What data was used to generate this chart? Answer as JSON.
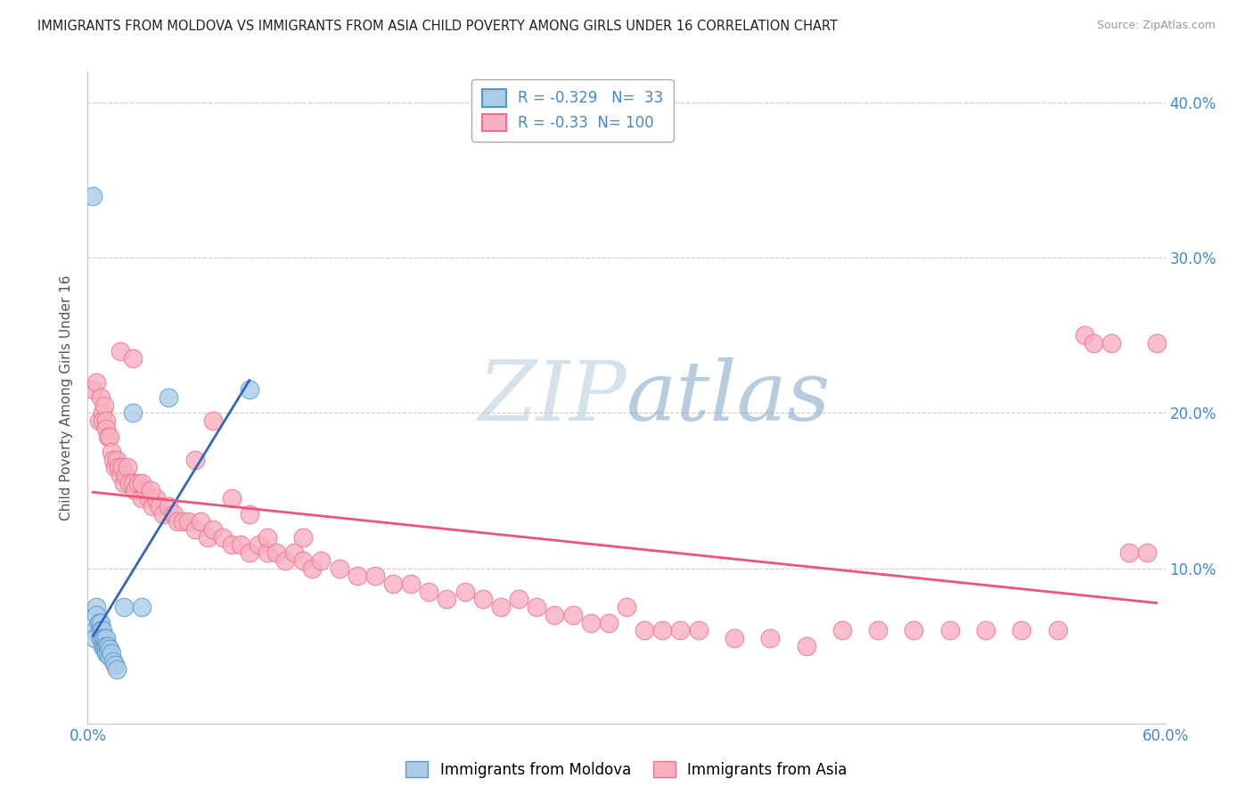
{
  "title": "IMMIGRANTS FROM MOLDOVA VS IMMIGRANTS FROM ASIA CHILD POVERTY AMONG GIRLS UNDER 16 CORRELATION CHART",
  "source": "Source: ZipAtlas.com",
  "ylabel": "Child Poverty Among Girls Under 16",
  "xlim": [
    0.0,
    0.6
  ],
  "ylim": [
    0.0,
    0.42
  ],
  "xticks": [
    0.0,
    0.1,
    0.2,
    0.3,
    0.4,
    0.5,
    0.6
  ],
  "yticks": [
    0.0,
    0.1,
    0.2,
    0.3,
    0.4
  ],
  "right_ytick_labels": [
    "",
    "10.0%",
    "20.0%",
    "30.0%",
    "40.0%"
  ],
  "xtick_labels": [
    "0.0%",
    "",
    "",
    "",
    "",
    "",
    "60.0%"
  ],
  "moldova_R": -0.329,
  "moldova_N": 33,
  "asia_R": -0.33,
  "asia_N": 100,
  "moldova_color": "#aacce8",
  "moldova_edge_color": "#5599cc",
  "asia_color": "#f8b0c0",
  "asia_edge_color": "#ee7090",
  "moldova_line_color": "#3366bb",
  "asia_line_color": "#ee5577",
  "watermark_color": "#ccd8e8",
  "background_color": "#ffffff",
  "grid_color": "#cccccc",
  "moldova_scatter_x": [
    0.003,
    0.004,
    0.004,
    0.005,
    0.005,
    0.006,
    0.006,
    0.007,
    0.007,
    0.007,
    0.008,
    0.008,
    0.008,
    0.009,
    0.009,
    0.009,
    0.01,
    0.01,
    0.01,
    0.01,
    0.011,
    0.011,
    0.012,
    0.012,
    0.013,
    0.014,
    0.015,
    0.016,
    0.02,
    0.025,
    0.03,
    0.045,
    0.09
  ],
  "moldova_scatter_y": [
    0.34,
    0.06,
    0.055,
    0.075,
    0.07,
    0.065,
    0.065,
    0.065,
    0.06,
    0.055,
    0.06,
    0.055,
    0.05,
    0.055,
    0.05,
    0.048,
    0.055,
    0.05,
    0.048,
    0.045,
    0.05,
    0.045,
    0.048,
    0.043,
    0.045,
    0.04,
    0.038,
    0.035,
    0.075,
    0.2,
    0.075,
    0.21,
    0.215
  ],
  "asia_scatter_x": [
    0.003,
    0.005,
    0.006,
    0.007,
    0.008,
    0.008,
    0.009,
    0.01,
    0.01,
    0.011,
    0.012,
    0.013,
    0.014,
    0.015,
    0.016,
    0.017,
    0.018,
    0.019,
    0.02,
    0.021,
    0.022,
    0.023,
    0.025,
    0.026,
    0.028,
    0.03,
    0.032,
    0.034,
    0.036,
    0.038,
    0.04,
    0.042,
    0.045,
    0.048,
    0.05,
    0.053,
    0.056,
    0.06,
    0.063,
    0.067,
    0.07,
    0.075,
    0.08,
    0.085,
    0.09,
    0.095,
    0.1,
    0.105,
    0.11,
    0.115,
    0.12,
    0.125,
    0.13,
    0.14,
    0.15,
    0.16,
    0.17,
    0.18,
    0.19,
    0.2,
    0.21,
    0.22,
    0.23,
    0.24,
    0.25,
    0.26,
    0.27,
    0.28,
    0.29,
    0.3,
    0.31,
    0.32,
    0.33,
    0.34,
    0.36,
    0.38,
    0.4,
    0.42,
    0.44,
    0.46,
    0.48,
    0.5,
    0.52,
    0.54,
    0.555,
    0.56,
    0.57,
    0.58,
    0.59,
    0.595,
    0.018,
    0.025,
    0.03,
    0.035,
    0.06,
    0.07,
    0.08,
    0.09,
    0.1,
    0.12
  ],
  "asia_scatter_y": [
    0.215,
    0.22,
    0.195,
    0.21,
    0.2,
    0.195,
    0.205,
    0.195,
    0.19,
    0.185,
    0.185,
    0.175,
    0.17,
    0.165,
    0.17,
    0.165,
    0.16,
    0.165,
    0.155,
    0.16,
    0.165,
    0.155,
    0.155,
    0.15,
    0.155,
    0.145,
    0.15,
    0.145,
    0.14,
    0.145,
    0.14,
    0.135,
    0.14,
    0.135,
    0.13,
    0.13,
    0.13,
    0.125,
    0.13,
    0.12,
    0.125,
    0.12,
    0.115,
    0.115,
    0.11,
    0.115,
    0.11,
    0.11,
    0.105,
    0.11,
    0.105,
    0.1,
    0.105,
    0.1,
    0.095,
    0.095,
    0.09,
    0.09,
    0.085,
    0.08,
    0.085,
    0.08,
    0.075,
    0.08,
    0.075,
    0.07,
    0.07,
    0.065,
    0.065,
    0.075,
    0.06,
    0.06,
    0.06,
    0.06,
    0.055,
    0.055,
    0.05,
    0.06,
    0.06,
    0.06,
    0.06,
    0.06,
    0.06,
    0.06,
    0.25,
    0.245,
    0.245,
    0.11,
    0.11,
    0.245,
    0.24,
    0.235,
    0.155,
    0.15,
    0.17,
    0.195,
    0.145,
    0.135,
    0.12,
    0.12
  ]
}
